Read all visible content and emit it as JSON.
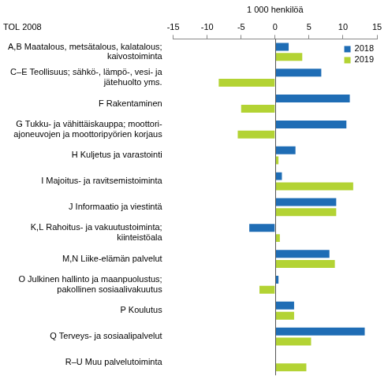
{
  "chart_data": {
    "type": "bar",
    "orientation": "horizontal",
    "xlabel": "1 000 henkilöä",
    "ylabel": "TOL 2008",
    "categories": [
      [
        "A,B Maatalous, metsätalous, kalatalous;",
        "kaivostoiminta"
      ],
      [
        "C–E Teollisuus; sähkö-, lämpö-, vesi- ja",
        "jätehuolto yms."
      ],
      [
        "F Rakentaminen"
      ],
      [
        "G Tukku- ja vähittäiskauppa; moottori-",
        "ajoneuvojen ja moottoripyörien korjaus"
      ],
      [
        "H Kuljetus ja varastointi"
      ],
      [
        "I Majoitus- ja ravitsemistoiminta"
      ],
      [
        "J Informaatio ja viestintä"
      ],
      [
        "K,L Rahoitus- ja vakuutustoiminta;",
        "kiinteistöala"
      ],
      [
        "M,N Liike-elämän palvelut"
      ],
      [
        "O Julkinen hallinto ja maanpuolustus;",
        "pakollinen sosiaalivakuutus"
      ],
      [
        "P Koulutus"
      ],
      [
        "Q Terveys- ja sosiaalipalvelut"
      ],
      [
        "R–U Muu palvelutoiminta"
      ]
    ],
    "series": [
      {
        "name": "2018",
        "color": "#1f6db5",
        "values": [
          2.0,
          6.8,
          11.0,
          10.5,
          3.0,
          1.0,
          9.0,
          -3.8,
          8.0,
          0.5,
          2.8,
          13.2,
          0.1
        ]
      },
      {
        "name": "2019",
        "color": "#b3d334",
        "values": [
          4.0,
          -8.3,
          -5.0,
          -5.5,
          0.5,
          11.5,
          9.0,
          0.7,
          8.8,
          -2.3,
          2.8,
          5.3,
          4.6
        ]
      }
    ],
    "xlim": [
      -15,
      15
    ],
    "xticks": [
      -15,
      -10,
      -5,
      0,
      5,
      10,
      15
    ],
    "grid": false,
    "legend": "upper right"
  }
}
